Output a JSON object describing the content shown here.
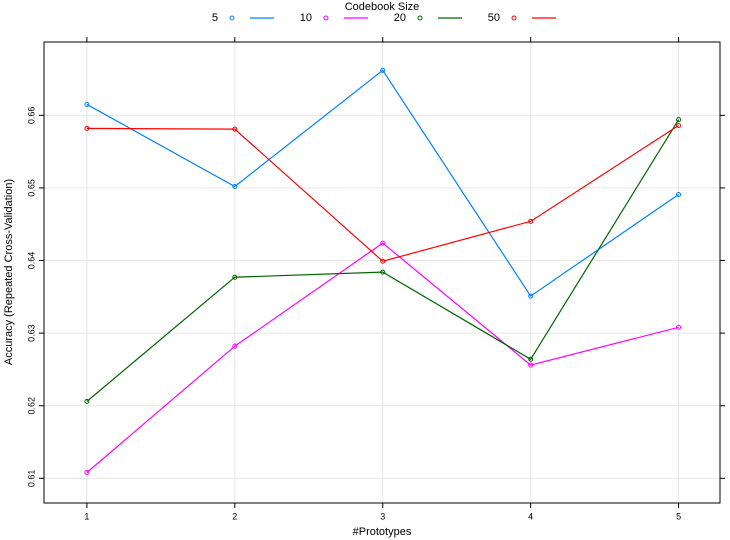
{
  "chart_data": {
    "type": "line",
    "legend_title": "Codebook Size",
    "x_label": "#Prototypes",
    "y_label": "Accuracy (Repeated Cross-Validation)",
    "x": [
      1,
      2,
      3,
      4,
      5
    ],
    "series": [
      {
        "name": "5",
        "color": "#0080ff",
        "values": [
          0.6615,
          0.6502,
          0.6662,
          0.6351,
          0.6491
        ]
      },
      {
        "name": "10",
        "color": "#ff00ff",
        "values": [
          0.6108,
          0.6282,
          0.6424,
          0.6256,
          0.6308
        ]
      },
      {
        "name": "20",
        "color": "#006400",
        "values": [
          0.6206,
          0.6377,
          0.6384,
          0.6264,
          0.6594
        ]
      },
      {
        "name": "50",
        "color": "#ff0000",
        "values": [
          0.6582,
          0.6581,
          0.6399,
          0.6454,
          0.6586
        ]
      }
    ],
    "xlim": [
      0.71,
      5.28
    ],
    "xticks": [
      1,
      2,
      3,
      4,
      5
    ],
    "ylim": [
      0.6066,
      0.6701
    ],
    "yticks": [
      0.61,
      0.62,
      0.63,
      0.64,
      0.65,
      0.66
    ],
    "grid": true,
    "legend_position": "top"
  }
}
